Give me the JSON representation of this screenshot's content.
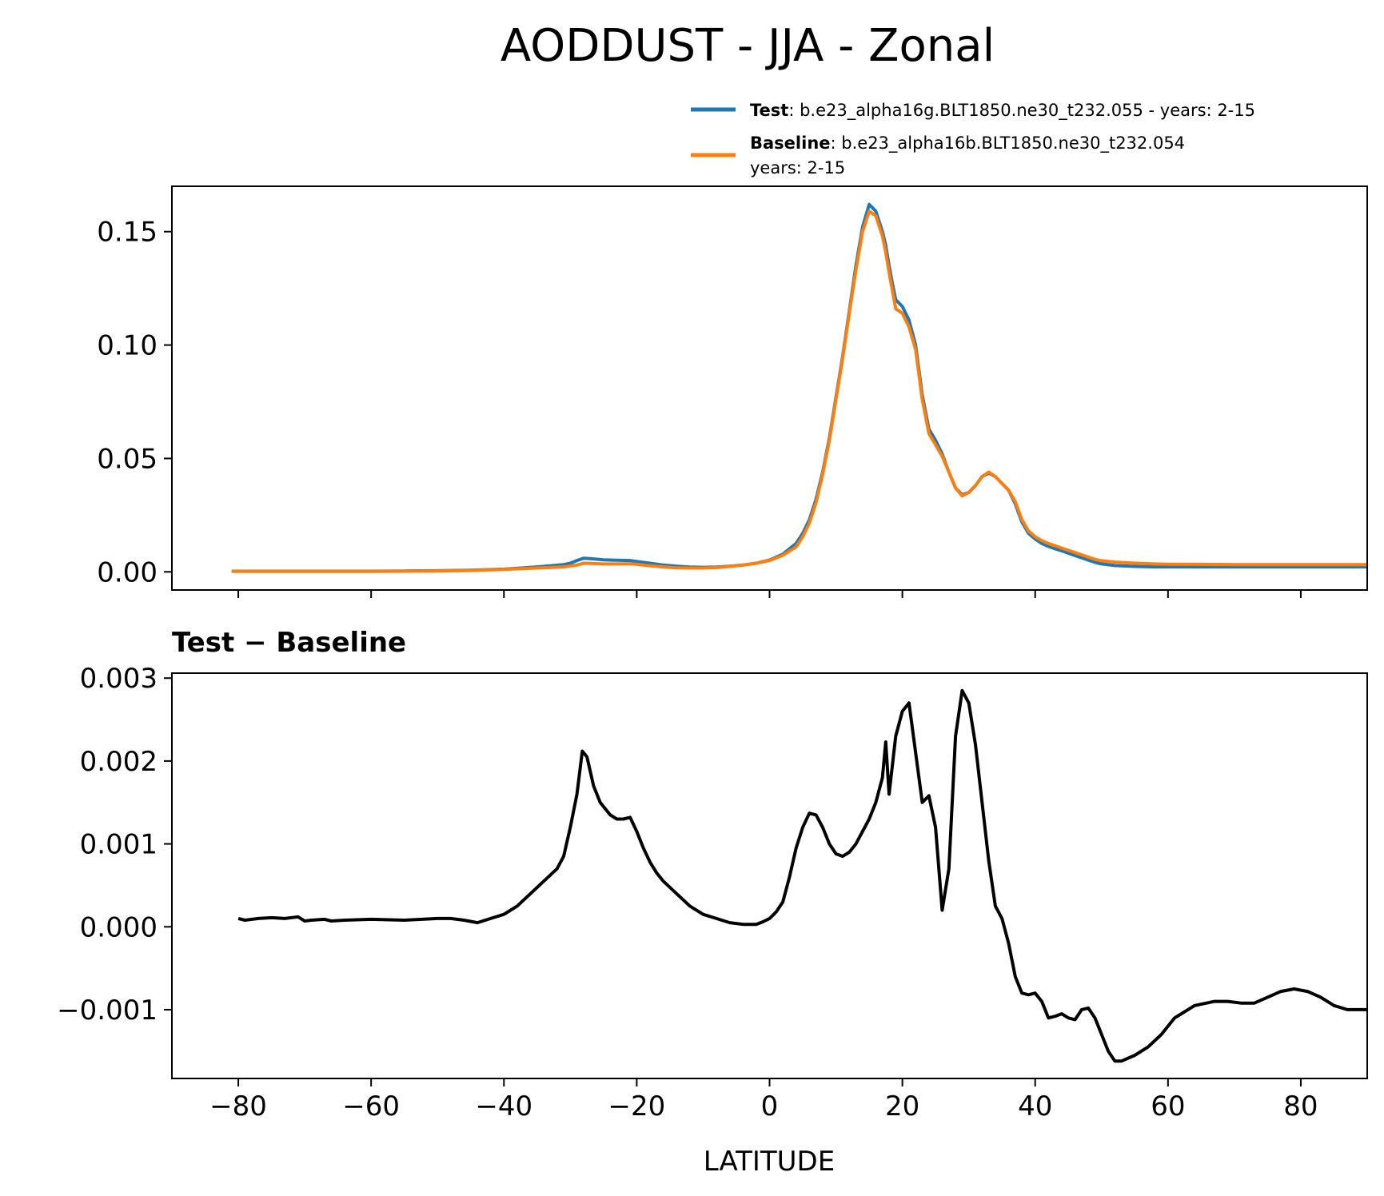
{
  "chart_data": [
    {
      "type": "line",
      "title": "AODDUST - JJA - Zonal",
      "xlabel": "",
      "ylabel": "",
      "xlim": [
        -90,
        90
      ],
      "ylim": [
        -0.008,
        0.17
      ],
      "yticks": [
        "0.00",
        "0.05",
        "0.10",
        "0.15"
      ],
      "yticks_values": [
        0.0,
        0.05,
        0.1,
        0.15
      ],
      "xticks_values": [
        -80,
        -60,
        -40,
        -20,
        0,
        20,
        40,
        60,
        80
      ],
      "legend_position": "top-right",
      "legend": [
        {
          "bold": "Test",
          "text": ": b.e23_alpha16g.BLT1850.ne30_t232.055 - years: 2-15",
          "text2": "",
          "color": "#1f77b4"
        },
        {
          "bold": "Baseline",
          "text": ": b.e23_alpha16b.BLT1850.ne30_t232.054",
          "text2": "years: 2-15",
          "color": "#ff7f0e"
        }
      ],
      "series": [
        {
          "name": "Test",
          "color": "#1f77b4",
          "x": [
            -81,
            -75,
            -70,
            -65,
            -60,
            -55,
            -50,
            -45,
            -40,
            -35,
            -31,
            -30,
            -29,
            -28,
            -27,
            -25,
            -23,
            -21,
            -20,
            -18,
            -16,
            -14,
            -12,
            -10,
            -8,
            -6,
            -4,
            -2,
            0,
            2,
            4,
            5,
            6,
            7,
            8,
            9,
            10,
            11,
            12,
            13,
            14,
            15,
            16,
            17,
            17.5,
            18,
            18.5,
            19,
            20,
            21,
            22,
            23,
            24,
            25,
            26,
            27,
            28,
            29,
            30,
            31,
            32,
            33,
            34,
            35,
            36,
            37,
            38,
            39,
            40,
            41,
            42,
            43,
            44,
            45,
            46,
            47,
            48,
            49,
            50,
            52,
            55,
            58,
            60,
            65,
            70,
            75,
            80,
            85,
            90
          ],
          "y": [
            0.0003,
            0.0003,
            0.0003,
            0.0003,
            0.0003,
            0.0004,
            0.0005,
            0.0007,
            0.0012,
            0.0022,
            0.0032,
            0.0038,
            0.005,
            0.006,
            0.0058,
            0.0053,
            0.0051,
            0.005,
            0.0046,
            0.0038,
            0.003,
            0.0025,
            0.0021,
            0.002,
            0.0021,
            0.0025,
            0.003,
            0.0038,
            0.0052,
            0.0078,
            0.0125,
            0.017,
            0.023,
            0.032,
            0.044,
            0.059,
            0.077,
            0.095,
            0.115,
            0.135,
            0.152,
            0.162,
            0.159,
            0.15,
            0.144,
            0.135,
            0.127,
            0.12,
            0.117,
            0.111,
            0.1,
            0.078,
            0.063,
            0.058,
            0.052,
            0.044,
            0.037,
            0.034,
            0.035,
            0.038,
            0.042,
            0.0435,
            0.042,
            0.039,
            0.036,
            0.03,
            0.022,
            0.017,
            0.0145,
            0.0125,
            0.0112,
            0.0102,
            0.0093,
            0.0082,
            0.0072,
            0.0062,
            0.0052,
            0.0042,
            0.0035,
            0.0028,
            0.0024,
            0.0022,
            0.0022,
            0.0022,
            0.0022,
            0.0022,
            0.0022,
            0.0022,
            0.0022
          ]
        },
        {
          "name": "Baseline",
          "color": "#ff7f0e",
          "x": [
            -81,
            -75,
            -70,
            -65,
            -60,
            -55,
            -50,
            -45,
            -40,
            -35,
            -31,
            -30,
            -29,
            -28,
            -27,
            -25,
            -23,
            -21,
            -20,
            -18,
            -16,
            -14,
            -12,
            -10,
            -8,
            -6,
            -4,
            -2,
            0,
            2,
            4,
            5,
            6,
            7,
            8,
            9,
            10,
            11,
            12,
            13,
            14,
            15,
            16,
            17,
            17.5,
            18,
            18.5,
            19,
            20,
            21,
            22,
            23,
            24,
            25,
            26,
            27,
            28,
            29,
            30,
            31,
            32,
            33,
            34,
            35,
            36,
            37,
            38,
            39,
            40,
            41,
            42,
            43,
            44,
            45,
            46,
            47,
            48,
            49,
            50,
            52,
            55,
            58,
            60,
            65,
            70,
            75,
            80,
            85,
            90
          ],
          "y": [
            0.0002,
            0.0002,
            0.0002,
            0.0002,
            0.0002,
            0.0003,
            0.0004,
            0.0006,
            0.0011,
            0.0017,
            0.0022,
            0.0026,
            0.003,
            0.0038,
            0.0037,
            0.0035,
            0.0035,
            0.0036,
            0.0033,
            0.0027,
            0.0022,
            0.0018,
            0.0017,
            0.0017,
            0.0019,
            0.0024,
            0.003,
            0.0038,
            0.005,
            0.0073,
            0.011,
            0.0155,
            0.0215,
            0.0305,
            0.043,
            0.058,
            0.076,
            0.094,
            0.114,
            0.133,
            0.15,
            0.159,
            0.157,
            0.148,
            0.141,
            0.132,
            0.124,
            0.116,
            0.114,
            0.108,
            0.098,
            0.076,
            0.061,
            0.056,
            0.051,
            0.044,
            0.037,
            0.0335,
            0.035,
            0.038,
            0.042,
            0.044,
            0.042,
            0.039,
            0.036,
            0.031,
            0.023,
            0.018,
            0.0155,
            0.0138,
            0.0125,
            0.0115,
            0.0105,
            0.0095,
            0.0085,
            0.0075,
            0.0065,
            0.0055,
            0.0049,
            0.0043,
            0.0038,
            0.0035,
            0.0034,
            0.0033,
            0.0032,
            0.0032,
            0.0032,
            0.0032,
            0.0032
          ]
        }
      ]
    },
    {
      "type": "line",
      "title": "Test − Baseline",
      "xlabel": "LATITUDE",
      "ylabel": "",
      "xlim": [
        -90,
        90
      ],
      "ylim": [
        -0.00183,
        0.00306
      ],
      "yticks": [
        "−0.001",
        "0.000",
        "0.001",
        "0.002",
        "0.003"
      ],
      "yticks_values": [
        -0.001,
        0.0,
        0.001,
        0.002,
        0.003
      ],
      "xticks": [
        "−80",
        "−60",
        "−40",
        "−20",
        "0",
        "20",
        "40",
        "60",
        "80"
      ],
      "xticks_values": [
        -80,
        -60,
        -40,
        -20,
        0,
        20,
        40,
        60,
        80
      ],
      "series": [
        {
          "name": "",
          "color": "#000000",
          "x": [
            -80,
            -79,
            -77,
            -75,
            -73,
            -71,
            -70,
            -69,
            -67,
            -66,
            -64,
            -60,
            -55,
            -50,
            -48,
            -46,
            -44,
            -42,
            -40,
            -38,
            -36,
            -34,
            -32,
            -31,
            -30,
            -29,
            -28.2,
            -27.5,
            -26.5,
            -25.5,
            -24,
            -23,
            -22,
            -21,
            -20,
            -19,
            -18,
            -17,
            -16,
            -14,
            -12,
            -10,
            -8,
            -6,
            -4,
            -2,
            -1,
            0,
            1,
            2,
            3,
            4,
            5,
            6,
            7,
            8,
            9,
            10,
            11,
            12,
            13,
            14,
            15,
            16,
            17,
            17.5,
            18,
            19,
            20,
            21,
            22,
            23,
            24,
            25,
            26,
            27,
            28,
            29,
            30,
            31,
            32,
            33,
            34,
            35,
            36,
            37,
            38,
            39,
            40,
            41,
            42,
            43,
            44,
            45,
            46,
            47,
            48,
            49,
            50,
            51,
            52,
            53,
            55,
            57,
            59,
            61,
            64,
            67,
            69,
            71,
            73,
            75,
            77,
            79,
            81,
            83,
            85,
            87,
            90
          ],
          "y": [
            0.0001,
            8e-05,
            0.0001,
            0.00011,
            0.0001,
            0.00012,
            7e-05,
            8e-05,
            9e-05,
            7e-05,
            8e-05,
            9e-05,
            8e-05,
            0.0001,
            0.0001,
            8e-05,
            5e-05,
            0.0001,
            0.00015,
            0.00025,
            0.0004,
            0.00055,
            0.0007,
            0.00085,
            0.0012,
            0.0016,
            0.00212,
            0.00205,
            0.0017,
            0.0015,
            0.00135,
            0.0013,
            0.0013,
            0.00132,
            0.00115,
            0.00095,
            0.00078,
            0.00065,
            0.00055,
            0.0004,
            0.00025,
            0.00015,
            0.0001,
            5e-05,
            3e-05,
            3e-05,
            6e-05,
            0.0001,
            0.00018,
            0.0003,
            0.0006,
            0.00095,
            0.0012,
            0.00137,
            0.00135,
            0.0012,
            0.001,
            0.00088,
            0.00085,
            0.0009,
            0.001,
            0.00115,
            0.0013,
            0.0015,
            0.0018,
            0.00223,
            0.0016,
            0.0023,
            0.0026,
            0.0027,
            0.0021,
            0.0015,
            0.00158,
            0.0012,
            0.0002,
            0.0007,
            0.0023,
            0.00285,
            0.0027,
            0.0022,
            0.0015,
            0.0008,
            0.00025,
            0.0001,
            -0.0002,
            -0.0006,
            -0.0008,
            -0.00082,
            -0.0008,
            -0.0009,
            -0.0011,
            -0.00108,
            -0.00105,
            -0.0011,
            -0.00112,
            -0.001,
            -0.00098,
            -0.0011,
            -0.0013,
            -0.0015,
            -0.00162,
            -0.00162,
            -0.00155,
            -0.00145,
            -0.0013,
            -0.0011,
            -0.00095,
            -0.0009,
            -0.0009,
            -0.00092,
            -0.00092,
            -0.00085,
            -0.00078,
            -0.00075,
            -0.00078,
            -0.00085,
            -0.00095,
            -0.001,
            -0.001
          ]
        }
      ]
    }
  ]
}
